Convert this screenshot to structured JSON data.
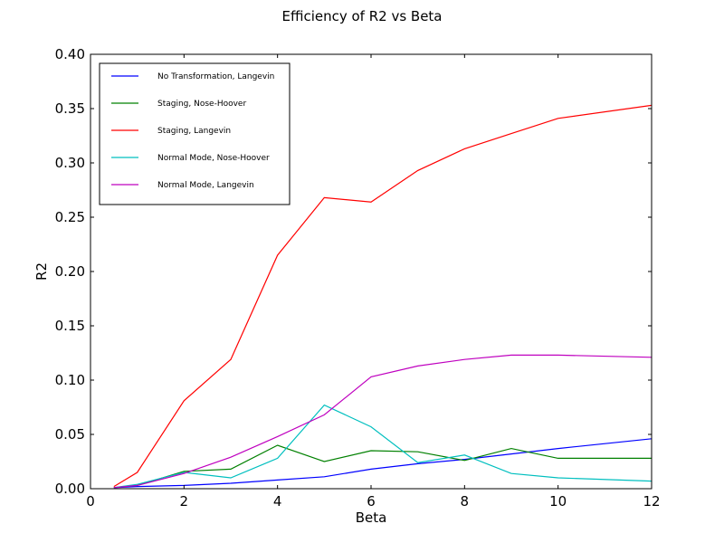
{
  "chart_data": {
    "type": "line",
    "title": "Efficiency of R2 vs Beta",
    "xlabel": "Beta",
    "ylabel": "R2",
    "xlim": [
      0,
      12
    ],
    "ylim": [
      0,
      0.4
    ],
    "xticks": [
      "0",
      "2",
      "4",
      "6",
      "8",
      "10",
      "12"
    ],
    "yticks": [
      "0.00",
      "0.05",
      "0.10",
      "0.15",
      "0.20",
      "0.25",
      "0.30",
      "0.35",
      "0.40"
    ],
    "x": [
      0.5,
      1,
      2,
      3,
      4,
      5,
      6,
      7,
      8,
      9,
      10,
      12
    ],
    "grid": false,
    "legend_position": "top-left",
    "series": [
      {
        "name": "No Transformation, Langevin",
        "color": "#0000ff",
        "values": [
          0.001,
          0.002,
          0.003,
          0.005,
          0.008,
          0.011,
          0.018,
          0.023,
          0.027,
          0.032,
          0.037,
          0.046
        ]
      },
      {
        "name": "Staging, Nose-Hoover",
        "color": "#008000",
        "values": [
          0.001,
          0.003,
          0.016,
          0.018,
          0.04,
          0.025,
          0.035,
          0.034,
          0.026,
          0.037,
          0.028,
          0.028
        ]
      },
      {
        "name": "Staging, Langevin",
        "color": "#ff0000",
        "values": [
          0.002,
          0.015,
          0.081,
          0.119,
          0.215,
          0.268,
          0.264,
          0.293,
          0.313,
          0.327,
          0.341,
          0.353
        ]
      },
      {
        "name": "Normal Mode, Nose-Hoover",
        "color": "#00bfbf",
        "values": [
          0.001,
          0.004,
          0.015,
          0.01,
          0.028,
          0.077,
          0.057,
          0.024,
          0.031,
          0.014,
          0.01,
          0.007
        ]
      },
      {
        "name": "Normal Mode, Langevin",
        "color": "#bf00bf",
        "values": [
          0.001,
          0.003,
          0.014,
          0.029,
          0.048,
          0.068,
          0.103,
          0.113,
          0.119,
          0.123,
          0.123,
          0.121
        ]
      }
    ]
  }
}
